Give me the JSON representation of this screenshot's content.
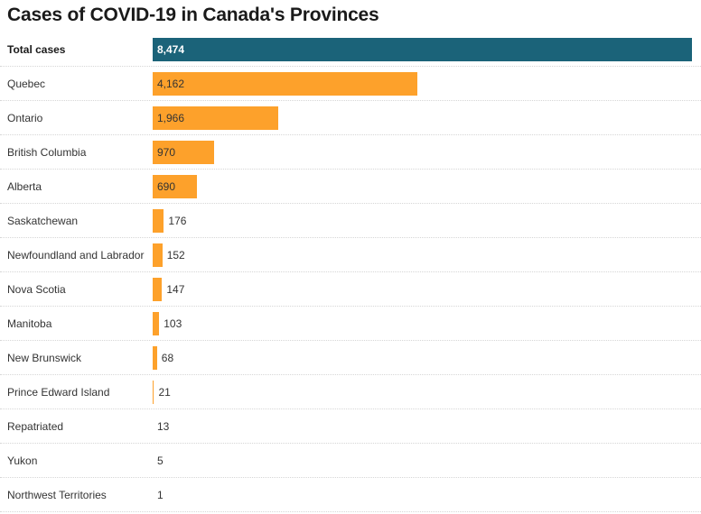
{
  "chart_data": {
    "type": "bar",
    "orientation": "horizontal",
    "title": "Cases of COVID-19 in Canada's Provinces",
    "xlim": [
      0,
      8474
    ],
    "grid": false,
    "legend": "none",
    "colors": {
      "total": "#1b6379",
      "province": "#fda12b"
    },
    "categories": [
      "Total cases",
      "Quebec",
      "Ontario",
      "British Columbia",
      "Alberta",
      "Saskatchewan",
      "Newfoundland and Labrador",
      "Nova Scotia",
      "Manitoba",
      "New Brunswick",
      "Prince Edward Island",
      "Repatriated",
      "Yukon",
      "Northwest Territories"
    ],
    "values": [
      8474,
      4162,
      1966,
      970,
      690,
      176,
      152,
      147,
      103,
      68,
      21,
      13,
      5,
      1
    ],
    "value_labels": [
      "8,474",
      "4,162",
      "1,966",
      "970",
      "690",
      "176",
      "152",
      "147",
      "103",
      "68",
      "21",
      "13",
      "5",
      "1"
    ]
  }
}
